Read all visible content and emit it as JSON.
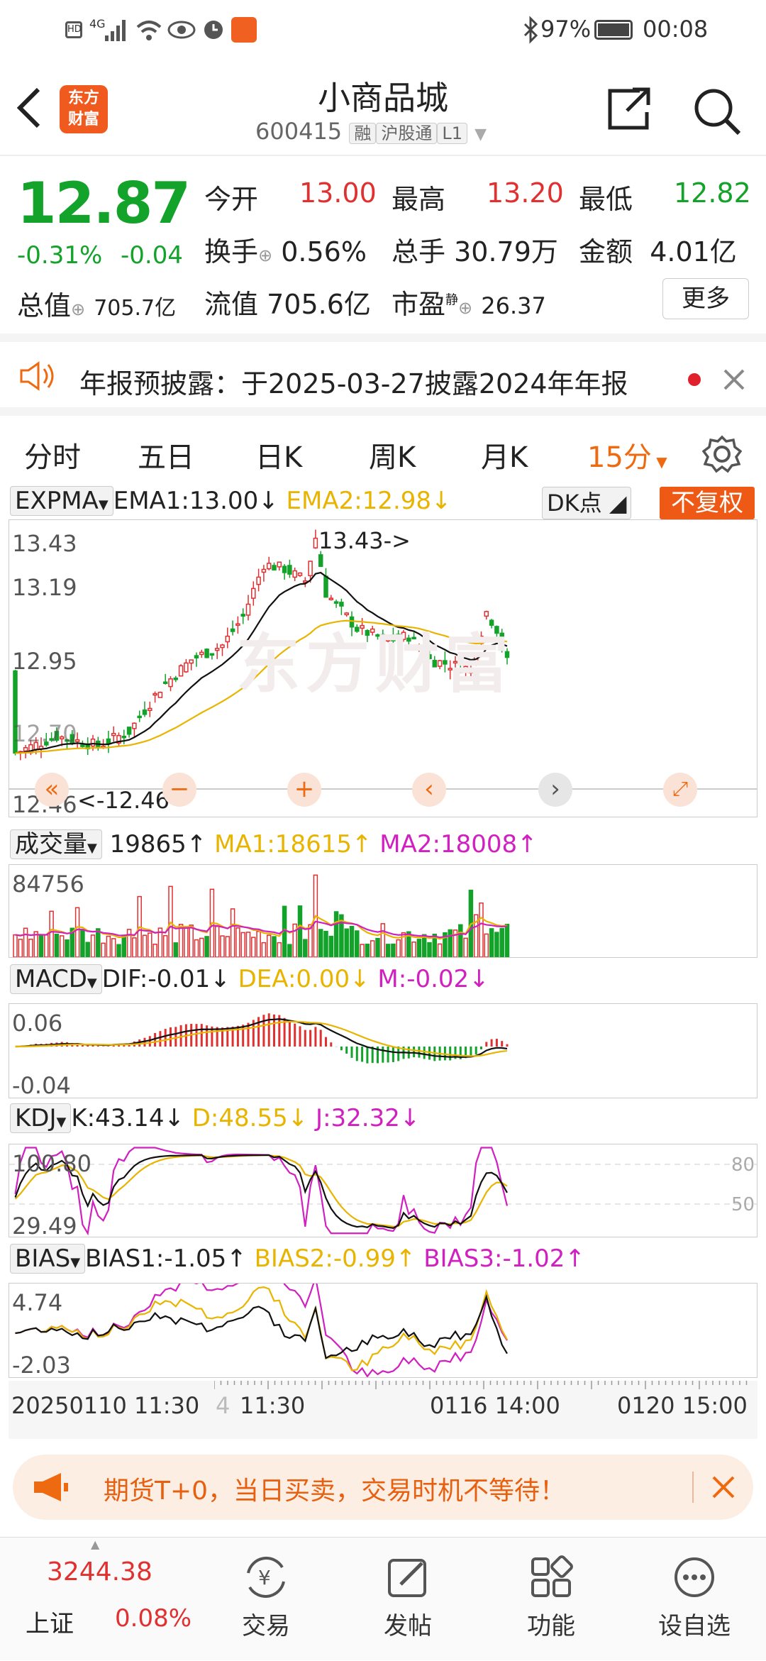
{
  "status": {
    "time": "00:08",
    "battery": "97%",
    "network": "4G"
  },
  "header": {
    "title": "小商品城",
    "code": "600415",
    "tags": [
      "融",
      "沪股通",
      "L1"
    ],
    "logo": "东方\n财富"
  },
  "quote": {
    "price": "12.87",
    "pct": "-0.31%",
    "chg": "-0.04",
    "open_label": "今开",
    "open": "13.00",
    "high_label": "最高",
    "high": "13.20",
    "low_label": "最低",
    "low": "12.82",
    "turnover_label": "换手",
    "turnover": "0.56%",
    "vol_label": "总手",
    "vol": "30.79万",
    "amt_label": "金额",
    "amt": "4.01亿",
    "mcap_label": "总值",
    "mcap": "705.7亿",
    "float_label": "流值",
    "float": "705.6亿",
    "pe_label": "市盈",
    "pe_sup": "静",
    "pe": "26.37",
    "more": "更多"
  },
  "notice": {
    "text": "年报预披露：于2025-03-27披露2024年年报"
  },
  "tabs": [
    "分时",
    "五日",
    "日K",
    "周K",
    "月K",
    "15分"
  ],
  "kline": {
    "ind": "EXPMA",
    "ema1": "EMA1:13.00",
    "ema2": "EMA2:12.98",
    "dk": "DK点",
    "fq": "不复权",
    "y_ticks": [
      "13.43",
      "13.19",
      "12.95",
      "12.70",
      "12.46"
    ],
    "hi_mark": "13.43->",
    "lo_mark": "<-12.46",
    "watermark": "东方财富"
  },
  "vol": {
    "ind": "成交量",
    "v": "19865",
    "ma1": "MA1:18615",
    "ma2": "MA2:18008",
    "y_tick": "84756"
  },
  "macd": {
    "ind": "MACD",
    "dif": "DIF:-0.01",
    "dea": "DEA:0.00",
    "m": "M:-0.02",
    "y_ticks": [
      "0.06",
      "-0.04"
    ]
  },
  "kdj": {
    "ind": "KDJ",
    "k": "K:43.14",
    "d": "D:48.55",
    "j": "J:32.32",
    "y_ticks": [
      "100.80",
      "29.49"
    ],
    "r_ticks": [
      "80",
      "50"
    ]
  },
  "bias": {
    "ind": "BIAS",
    "b1": "BIAS1:-1.05",
    "b2": "BIAS2:-0.99",
    "b3": "BIAS3:-1.02",
    "y_ticks": [
      "4.74",
      "-2.03"
    ]
  },
  "xaxis": [
    "20250110 11:30",
    "4",
    "11:30",
    "0116 14:00",
    "0120 15:00"
  ],
  "banner": {
    "text": "期货T+0，当日买卖，交易时机不等待！"
  },
  "nav": {
    "index_value": "3244.38",
    "index_name": "上证",
    "index_pct": "0.08%",
    "items": [
      "交易",
      "发帖",
      "功能",
      "设自选"
    ]
  },
  "colors": {
    "up": "#e03030",
    "down": "#13a22a",
    "ema2": "#e8b400",
    "ma2": "#d020c0",
    "accent": "#ee6a10"
  }
}
